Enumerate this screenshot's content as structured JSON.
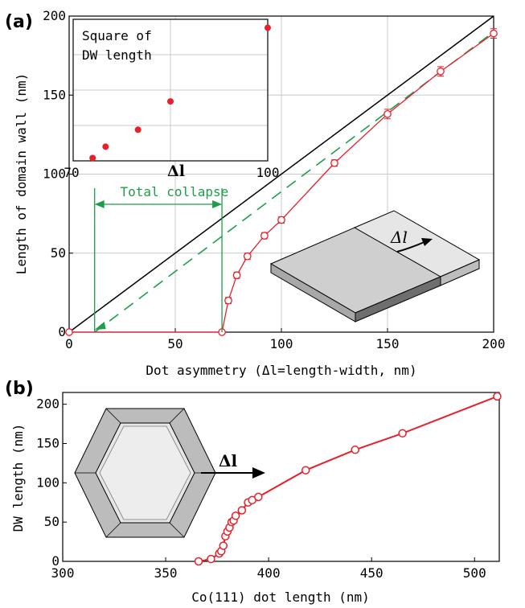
{
  "colors": {
    "data": "#e8202a",
    "estimate": "#1e9e4a",
    "axis": "#000000",
    "grid": "#c8c8c8",
    "slab_top": "#cfcfcf",
    "slab_side": "#8a8a8a",
    "slab_light": "#e6e6e6"
  },
  "panel_a": {
    "label": "(a)",
    "annotation": "Total collapse",
    "slab_label": "Δl"
  },
  "panel_b": {
    "label": "(b)",
    "hex_label": "Δl"
  },
  "chart_data": [
    {
      "type": "line",
      "id": "main",
      "xlabel": "Dot asymmetry (Δl=length-width, nm)",
      "ylabel": "Length of domain wall (nm)",
      "xlim": [
        0,
        200
      ],
      "ylim": [
        0,
        200
      ],
      "xticks": [
        0,
        50,
        100,
        150,
        200
      ],
      "yticks": [
        0,
        50,
        100,
        150,
        200
      ],
      "grid": true,
      "series": [
        {
          "style": "black-line",
          "x": [
            0,
            200
          ],
          "y": [
            0,
            200
          ]
        },
        {
          "style": "green-dashed",
          "x": [
            12,
            200
          ],
          "y": [
            0,
            190
          ]
        },
        {
          "style": "red-circles-errorbars",
          "x": [
            0,
            72,
            75,
            79,
            84,
            92,
            100,
            125,
            150,
            175,
            200
          ],
          "y": [
            0,
            0,
            20,
            36,
            48,
            61,
            71,
            107,
            138,
            165,
            189
          ],
          "err": [
            0,
            0,
            2,
            2,
            2,
            2,
            2,
            2,
            3,
            3,
            3
          ]
        }
      ],
      "annotation_span": [
        12,
        72
      ]
    },
    {
      "type": "scatter",
      "id": "inset",
      "title": "Square of DW length",
      "xlabel": "Δl",
      "xlim": [
        70,
        100
      ],
      "xticks": [
        70,
        100
      ],
      "x": [
        73,
        75,
        80,
        85,
        100
      ],
      "y": [
        0.02,
        0.1,
        0.22,
        0.42,
        0.94
      ],
      "grid": true
    },
    {
      "type": "line",
      "id": "bottom",
      "xlabel": "Co(111) dot length (nm)",
      "ylabel": "DW length (nm)",
      "xlim": [
        300,
        512
      ],
      "ylim": [
        0,
        215
      ],
      "xticks": [
        300,
        350,
        400,
        450,
        500
      ],
      "yticks": [
        0,
        50,
        100,
        150,
        200
      ],
      "grid": false,
      "x": [
        366,
        372,
        376,
        377,
        378,
        379,
        380,
        381,
        382,
        383,
        384,
        387,
        390,
        392,
        395,
        418,
        442,
        465,
        511
      ],
      "y": [
        0,
        3,
        10,
        13,
        20,
        32,
        38,
        43,
        50,
        52,
        58,
        65,
        75,
        78,
        82,
        116,
        142,
        163,
        210
      ]
    }
  ]
}
